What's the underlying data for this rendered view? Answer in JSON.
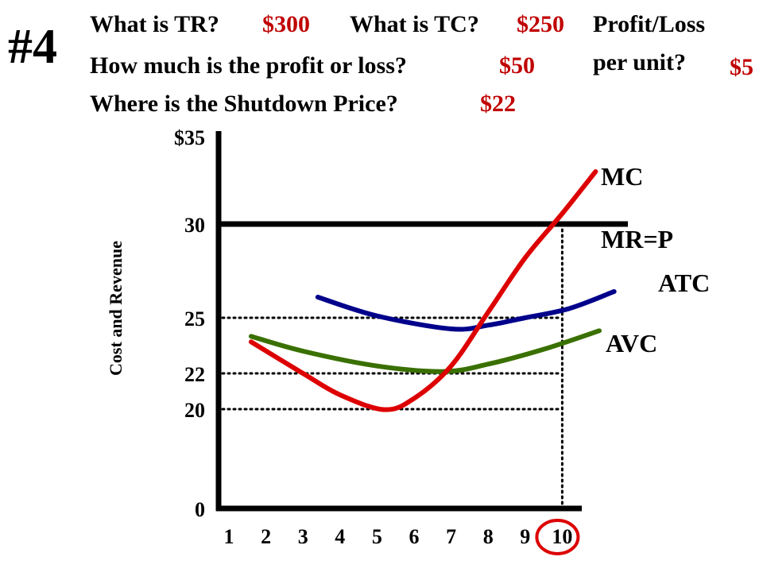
{
  "slide": {
    "number": "#4",
    "questions": {
      "tr_q": "What is TR?",
      "tr_a": "$300",
      "tc_q": "What is TC?",
      "tc_a": "$250",
      "profit_q": "How much is the profit or loss?",
      "profit_a": "$50",
      "unit_q1": "Profit/Loss",
      "unit_q2": "per unit?",
      "unit_a": "$5",
      "shutdown_q": "Where is the Shutdown Price?",
      "shutdown_a": "$22"
    }
  },
  "colors": {
    "MC": "#dd0000",
    "ATC": "#00008b",
    "AVC": "#3a7000",
    "MR": "#000000",
    "answer": "#c00000",
    "highlight_circle": "#dd0000"
  },
  "chart_data": {
    "type": "line",
    "ylabel": "Cost and Revenue",
    "xlabel": "",
    "x_ticks": [
      "1",
      "2",
      "3",
      "4",
      "5",
      "6",
      "7",
      "8",
      "9",
      "10"
    ],
    "y_ticks": [
      {
        "value": 0,
        "label": "0"
      },
      {
        "value": 20,
        "label": "20"
      },
      {
        "value": 22,
        "label": "22"
      },
      {
        "value": 25,
        "label": "25"
      },
      {
        "value": 30,
        "label": "30"
      },
      {
        "value": 35,
        "label": "$35"
      }
    ],
    "grid": false,
    "highlighted_x": 10,
    "mr_line": {
      "name": "MR=P",
      "y": 30
    },
    "series": [
      {
        "name": "MC",
        "points": [
          [
            1.6,
            23.7
          ],
          [
            3,
            22
          ],
          [
            4,
            20.8
          ],
          [
            5.2,
            19.9
          ],
          [
            6,
            20.6
          ],
          [
            7,
            22.4
          ],
          [
            8,
            25.3
          ],
          [
            9,
            28.2
          ],
          [
            10,
            30.6
          ],
          [
            10.9,
            33
          ]
        ]
      },
      {
        "name": "ATC",
        "points": [
          [
            3.4,
            26.1
          ],
          [
            5,
            25.1
          ],
          [
            7,
            24.4
          ],
          [
            8,
            24.6
          ],
          [
            9,
            25
          ],
          [
            10.2,
            25.5
          ],
          [
            11.4,
            26.4
          ]
        ]
      },
      {
        "name": "AVC",
        "points": [
          [
            1.6,
            24
          ],
          [
            3,
            23.2
          ],
          [
            5,
            22.4
          ],
          [
            6.8,
            22.1
          ],
          [
            8,
            22.5
          ],
          [
            9.5,
            23.3
          ],
          [
            11,
            24.3
          ]
        ]
      }
    ],
    "reference_lines": [
      {
        "y": 25,
        "style": "dotted"
      },
      {
        "y": 22,
        "style": "dotted"
      },
      {
        "y": 20,
        "style": "dotted"
      },
      {
        "x": 10,
        "style": "dotted",
        "from_y": 0,
        "to_y": 30
      }
    ]
  }
}
